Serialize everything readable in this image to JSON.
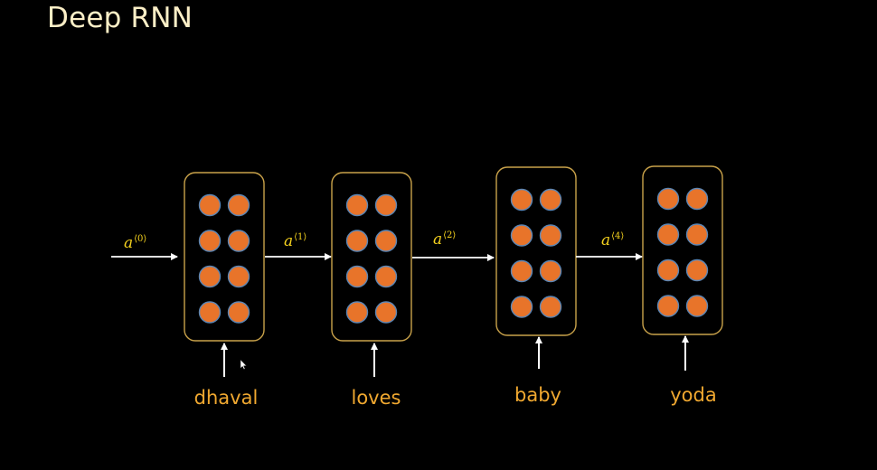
{
  "title": "Deep RNN",
  "colors": {
    "background": "#000000",
    "title": "#FCEFC7",
    "cell_border": "#C9A24A",
    "neuron_fill": "#E8742A",
    "neuron_stroke": "#5B86B5",
    "arrow": "#FFFFFF",
    "label": "#F0A830",
    "state_label": "#F5D21E"
  },
  "cells": [
    {
      "word": "dhaval"
    },
    {
      "word": "loves"
    },
    {
      "word": "baby"
    },
    {
      "word": "yoda"
    }
  ],
  "states": [
    {
      "base": "a",
      "sup": "⟨0⟩"
    },
    {
      "base": "a",
      "sup": "⟨1⟩"
    },
    {
      "base": "a",
      "sup": "⟨2⟩"
    },
    {
      "base": "a",
      "sup": "⟨4⟩"
    }
  ]
}
